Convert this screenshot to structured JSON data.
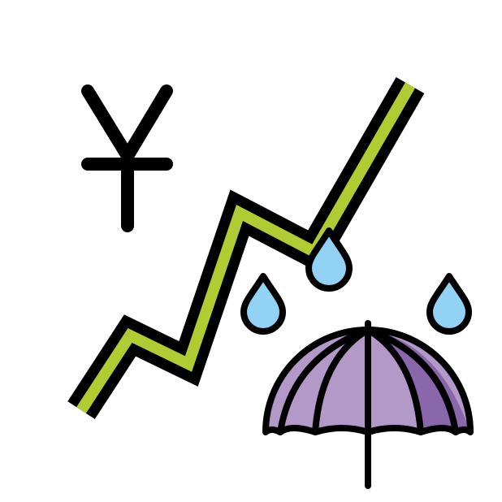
{
  "image": {
    "kind": "emoji-style illustration",
    "elements": [
      "yen-sign",
      "rising-chart-line",
      "raindrops",
      "umbrella"
    ]
  },
  "colors": {
    "background": "#ffffff",
    "outline": "#000000",
    "chart_line": "#b1cc33",
    "raindrop": "#92d3f5",
    "umbrella_light": "#b399c8",
    "umbrella_dark": "#8967aa"
  },
  "icons": {
    "currency": "yen-icon",
    "trend": "chart-increasing-icon",
    "weather": "raindrop-icon",
    "protection": "umbrella-icon"
  }
}
